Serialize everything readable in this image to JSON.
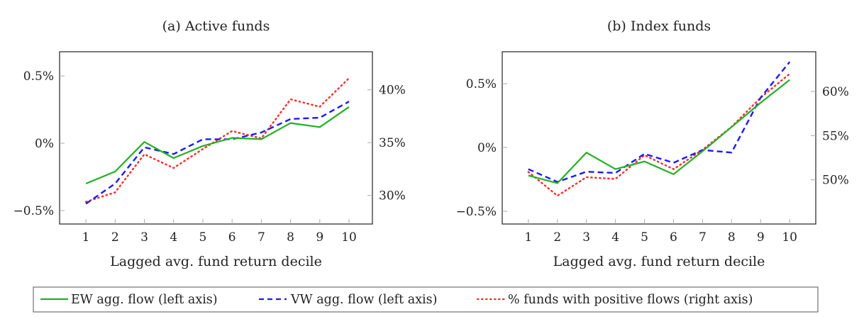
{
  "legend": {
    "entries": [
      {
        "label": "EW agg. flow (left axis)",
        "color": "#22b022",
        "style": "solid"
      },
      {
        "label": "VW agg. flow (left axis)",
        "color": "#1a1aff",
        "style": "dashed"
      },
      {
        "label": "% funds with positive flows (right axis)",
        "color": "#ff2a2a",
        "style": "dotted"
      }
    ],
    "placement": "bottom-center"
  },
  "chart_data": [
    {
      "type": "line",
      "title": "(a) Active funds",
      "xlabel": "Lagged avg. fund return decile",
      "ylabel": "",
      "x": [
        1,
        2,
        3,
        4,
        5,
        6,
        7,
        8,
        9,
        10
      ],
      "x_tick_labels": [
        "1",
        "2",
        "3",
        "4",
        "5",
        "6",
        "7",
        "8",
        "9",
        "10"
      ],
      "xlim": [
        0.1,
        10.8
      ],
      "ylim_left": [
        -0.6,
        0.68
      ],
      "ylim_right": [
        27.3,
        43.6
      ],
      "y_ticks_left": [
        {
          "value": -0.5,
          "label": "−0.5%"
        },
        {
          "value": 0,
          "label": "0%"
        },
        {
          "value": 0.5,
          "label": "0.5%"
        }
      ],
      "y_ticks_right": [
        {
          "value": 30,
          "label": "30%"
        },
        {
          "value": 35,
          "label": "35%"
        },
        {
          "value": 40,
          "label": "40%"
        }
      ],
      "grid": false,
      "series": [
        {
          "name": "EW agg. flow (left axis)",
          "axis": "left",
          "values": [
            -0.3,
            -0.21,
            0.01,
            -0.11,
            -0.02,
            0.04,
            0.03,
            0.15,
            0.12,
            0.27
          ]
        },
        {
          "name": "VW agg. flow (left axis)",
          "axis": "left",
          "values": [
            -0.45,
            -0.3,
            -0.03,
            -0.08,
            0.03,
            0.03,
            0.08,
            0.18,
            0.19,
            0.31
          ]
        },
        {
          "name": "% funds with positive flows (right axis)",
          "axis": "right",
          "values": [
            29.4,
            30.3,
            33.9,
            32.6,
            34.4,
            36.1,
            35.4,
            39.1,
            38.4,
            41.1
          ]
        }
      ]
    },
    {
      "type": "line",
      "title": "(b) Index funds",
      "xlabel": "Lagged avg. fund return decile",
      "ylabel": "",
      "x": [
        1,
        2,
        3,
        4,
        5,
        6,
        7,
        8,
        9,
        10
      ],
      "x_tick_labels": [
        "1",
        "2",
        "3",
        "4",
        "5",
        "6",
        "7",
        "8",
        "9",
        "10"
      ],
      "xlim": [
        0.1,
        10.9
      ],
      "ylim_left": [
        -0.6,
        0.75
      ],
      "ylim_right": [
        45.0,
        64.5
      ],
      "y_ticks_left": [
        {
          "value": -0.5,
          "label": "−0.5%"
        },
        {
          "value": 0,
          "label": "0%"
        },
        {
          "value": 0.5,
          "label": "0.5%"
        }
      ],
      "y_ticks_right": [
        {
          "value": 50,
          "label": "50%"
        },
        {
          "value": 55,
          "label": "55%"
        },
        {
          "value": 60,
          "label": "60%"
        }
      ],
      "grid": false,
      "series": [
        {
          "name": "EW agg. flow (left axis)",
          "axis": "left",
          "values": [
            -0.22,
            -0.28,
            -0.04,
            -0.17,
            -0.11,
            -0.21,
            -0.03,
            0.16,
            0.35,
            0.53
          ]
        },
        {
          "name": "VW agg. flow (left axis)",
          "axis": "left",
          "values": [
            -0.17,
            -0.27,
            -0.19,
            -0.2,
            -0.05,
            -0.12,
            -0.02,
            -0.04,
            0.39,
            0.67
          ]
        },
        {
          "name": "% funds with positive flows (right axis)",
          "axis": "right",
          "values": [
            50.9,
            48.2,
            50.3,
            50.1,
            52.8,
            51.2,
            53.4,
            56.0,
            59.3,
            62.0
          ]
        }
      ]
    }
  ]
}
